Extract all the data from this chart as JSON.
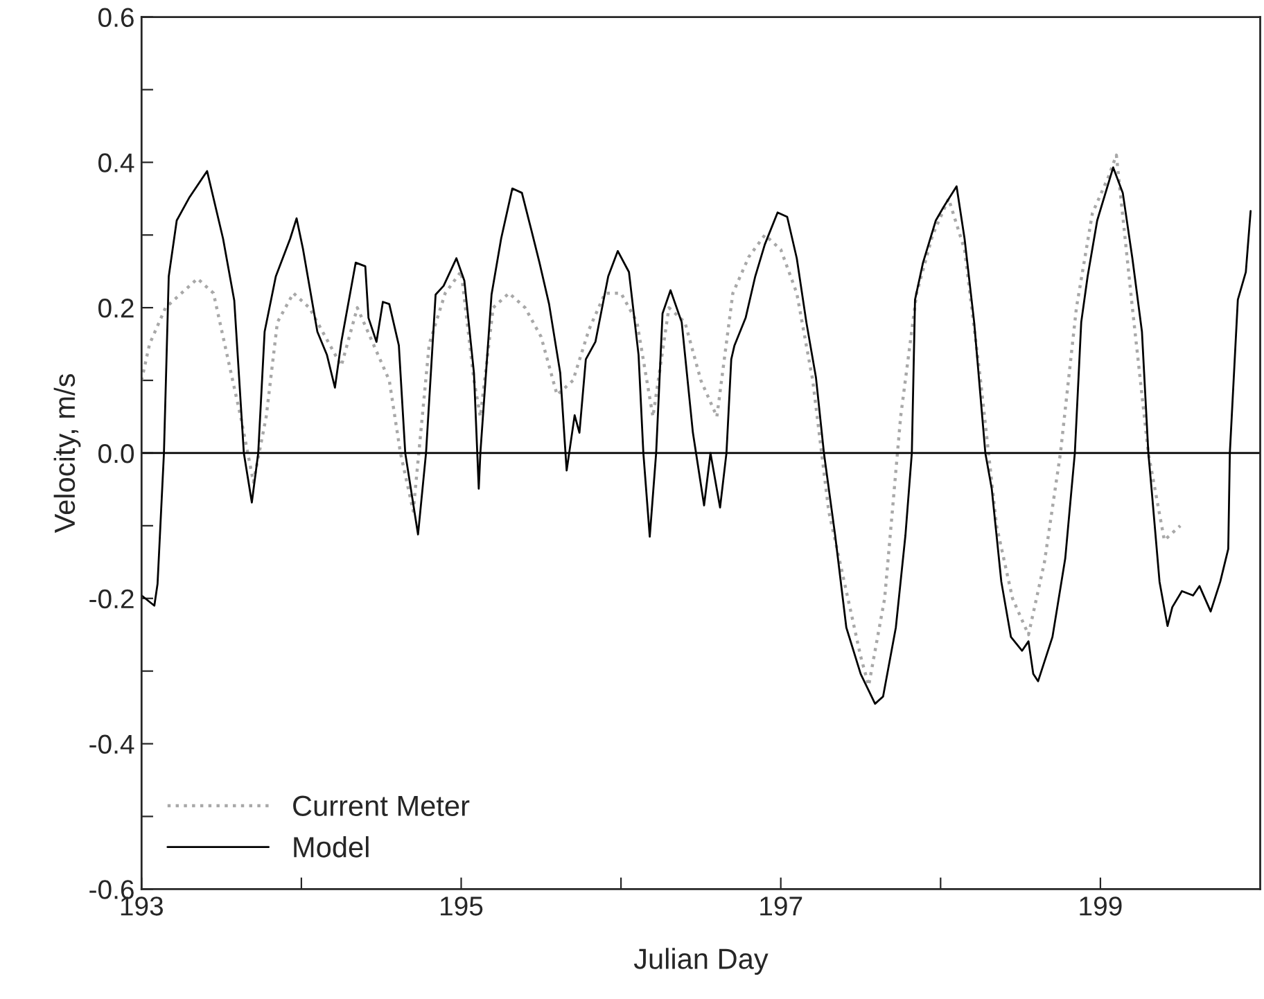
{
  "chart_data": {
    "type": "line",
    "xlabel": "Julian Day",
    "ylabel": "Velocity, m/s",
    "xlim": [
      193,
      200
    ],
    "xticks": [
      193,
      {
        "value": 194,
        "label": null
      },
      195,
      {
        "value": 196,
        "label": null
      },
      197,
      {
        "value": 198,
        "label": null
      },
      199
    ],
    "ylim": [
      -0.6,
      0.6
    ],
    "yticks": [
      {
        "value": -0.6,
        "label": "-0.6"
      },
      {
        "value": -0.5,
        "label": null
      },
      {
        "value": -0.4,
        "label": "-0.4"
      },
      {
        "value": -0.3,
        "label": null
      },
      {
        "value": -0.2,
        "label": "-0.2"
      },
      {
        "value": -0.1,
        "label": null
      },
      {
        "value": 0.0,
        "label": "0.0"
      },
      {
        "value": 0.1,
        "label": null
      },
      {
        "value": 0.2,
        "label": "0.2"
      },
      {
        "value": 0.3,
        "label": null
      },
      {
        "value": 0.4,
        "label": "0.4"
      },
      {
        "value": 0.5,
        "label": null
      },
      {
        "value": 0.6,
        "label": "0.6"
      }
    ],
    "ref_lines": [
      {
        "axis": "y",
        "value": 0.0,
        "color": "#000000",
        "line_style": "solid"
      }
    ],
    "grid": false,
    "legend": "bottom left",
    "marker": "none",
    "series": [
      {
        "name": "Current Meter",
        "color": "#a8a8a8",
        "line_style": "dotted",
        "x": [
          193.0,
          193.05,
          193.15,
          193.25,
          193.35,
          193.45,
          193.55,
          193.62,
          193.7,
          193.78,
          193.85,
          193.95,
          194.05,
          194.15,
          194.25,
          194.35,
          194.45,
          194.55,
          194.62,
          194.7,
          194.8,
          194.9,
          195.0,
          195.08,
          195.12,
          195.2,
          195.3,
          195.4,
          195.5,
          195.6,
          195.7,
          195.8,
          195.9,
          196.0,
          196.1,
          196.2,
          196.3,
          196.4,
          196.5,
          196.6,
          196.7,
          196.8,
          196.9,
          197.0,
          197.1,
          197.2,
          197.3,
          197.4,
          197.5,
          197.55,
          197.65,
          197.75,
          197.85,
          197.95,
          198.05,
          198.15,
          198.25,
          198.35,
          198.45,
          198.55,
          198.65,
          198.75,
          198.85,
          198.95,
          199.05,
          199.1,
          199.2,
          199.3,
          199.4,
          199.5
        ],
        "values": [
          0.1,
          0.15,
          0.2,
          0.22,
          0.24,
          0.22,
          0.12,
          0.05,
          -0.04,
          0.05,
          0.18,
          0.22,
          0.2,
          0.16,
          0.12,
          0.2,
          0.15,
          0.1,
          0.0,
          -0.08,
          0.15,
          0.22,
          0.25,
          0.1,
          0.05,
          0.2,
          0.22,
          0.2,
          0.16,
          0.08,
          0.1,
          0.17,
          0.22,
          0.22,
          0.18,
          0.05,
          0.2,
          0.18,
          0.1,
          0.05,
          0.22,
          0.27,
          0.3,
          0.28,
          0.22,
          0.1,
          -0.08,
          -0.18,
          -0.28,
          -0.32,
          -0.2,
          0.05,
          0.22,
          0.3,
          0.35,
          0.28,
          0.1,
          -0.1,
          -0.2,
          -0.25,
          -0.15,
          0.0,
          0.2,
          0.33,
          0.38,
          0.41,
          0.2,
          0.0,
          -0.12,
          -0.1
        ]
      },
      {
        "name": "Model",
        "color": "#000000",
        "line_style": "solid",
        "x": [
          193.0,
          193.08,
          193.1,
          193.14,
          193.17,
          193.22,
          193.3,
          193.41,
          193.51,
          193.58,
          193.64,
          193.69,
          193.73,
          193.77,
          193.84,
          193.93,
          193.97,
          194.01,
          194.1,
          194.16,
          194.21,
          194.25,
          194.34,
          194.4,
          194.42,
          194.47,
          194.51,
          194.55,
          194.61,
          194.65,
          194.73,
          194.78,
          194.84,
          194.89,
          194.97,
          195.02,
          195.08,
          195.11,
          195.12,
          195.19,
          195.25,
          195.32,
          195.38,
          195.44,
          195.49,
          195.55,
          195.62,
          195.66,
          195.71,
          195.74,
          195.78,
          195.84,
          195.92,
          195.98,
          196.05,
          196.11,
          196.14,
          196.18,
          196.22,
          196.26,
          196.31,
          196.38,
          196.45,
          196.52,
          196.56,
          196.62,
          196.66,
          196.69,
          196.71,
          196.78,
          196.84,
          196.9,
          196.98,
          197.04,
          197.1,
          197.16,
          197.22,
          197.27,
          197.34,
          197.41,
          197.5,
          197.59,
          197.64,
          197.72,
          197.78,
          197.82,
          197.84,
          197.89,
          197.97,
          198.02,
          198.1,
          198.15,
          198.21,
          198.28,
          198.32,
          198.38,
          198.44,
          198.51,
          198.55,
          198.58,
          198.61,
          198.7,
          198.78,
          198.84,
          198.88,
          198.92,
          198.98,
          199.08,
          199.14,
          199.2,
          199.26,
          199.3,
          199.32,
          199.37,
          199.42,
          199.45,
          199.51,
          199.58,
          199.62,
          199.69,
          199.75,
          199.8,
          199.81,
          199.86,
          199.91,
          199.94
        ],
        "values": [
          -0.196,
          -0.21,
          -0.18,
          0.0,
          0.243,
          0.32,
          0.352,
          0.388,
          0.295,
          0.21,
          0.0,
          -0.068,
          0.0,
          0.167,
          0.243,
          0.295,
          0.323,
          0.281,
          0.167,
          0.135,
          0.09,
          0.153,
          0.262,
          0.257,
          0.186,
          0.153,
          0.208,
          0.205,
          0.148,
          0.0,
          -0.112,
          0.0,
          0.218,
          0.23,
          0.268,
          0.237,
          0.11,
          -0.049,
          0.0,
          0.218,
          0.295,
          0.364,
          0.358,
          0.306,
          0.262,
          0.205,
          0.11,
          -0.024,
          0.052,
          0.028,
          0.129,
          0.153,
          0.243,
          0.278,
          0.249,
          0.135,
          0.0,
          -0.115,
          0.0,
          0.192,
          0.224,
          0.18,
          0.028,
          -0.072,
          0.0,
          -0.075,
          0.0,
          0.129,
          0.148,
          0.186,
          0.243,
          0.287,
          0.331,
          0.325,
          0.268,
          0.18,
          0.104,
          0.0,
          -0.113,
          -0.24,
          -0.304,
          -0.345,
          -0.335,
          -0.24,
          -0.113,
          0.0,
          0.211,
          0.262,
          0.32,
          0.339,
          0.367,
          0.295,
          0.18,
          0.0,
          -0.049,
          -0.177,
          -0.253,
          -0.272,
          -0.259,
          -0.304,
          -0.314,
          -0.253,
          -0.145,
          0.0,
          0.18,
          0.243,
          0.32,
          0.393,
          0.358,
          0.268,
          0.167,
          0.0,
          -0.049,
          -0.177,
          -0.238,
          -0.212,
          -0.19,
          -0.196,
          -0.183,
          -0.218,
          -0.177,
          -0.132,
          0.0,
          0.211,
          0.249,
          0.333
        ]
      }
    ]
  }
}
